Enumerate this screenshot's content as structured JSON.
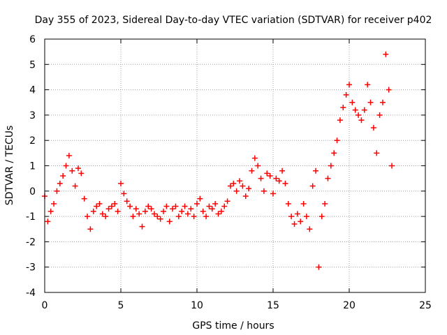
{
  "chart_data": {
    "type": "scatter",
    "title": "Day 355 of 2023, Sidereal Day-to-day VTEC variation (SDTVAR) for receiver p402",
    "xlabel": "GPS time / hours",
    "ylabel": "SDTVAR / TECUs",
    "xlim": [
      0,
      25
    ],
    "ylim": [
      -4,
      6
    ],
    "x_ticks": [
      0,
      5,
      10,
      15,
      20,
      25
    ],
    "y_ticks": [
      -4,
      -3,
      -2,
      -1,
      0,
      1,
      2,
      3,
      4,
      5,
      6
    ],
    "x_tick_labels": [
      "0",
      "5",
      "10",
      "15",
      "20",
      "25"
    ],
    "y_tick_labels": [
      "-4",
      "-3",
      "-2",
      "-1",
      "0",
      "1",
      "2",
      "3",
      "4",
      "5",
      "6"
    ],
    "grid": true,
    "marker": "+",
    "color": "#ff0000",
    "series": [
      {
        "name": "SDTVAR",
        "x": [
          0.0,
          0.2,
          0.4,
          0.6,
          0.8,
          1.0,
          1.2,
          1.4,
          1.6,
          1.8,
          2.0,
          2.2,
          2.4,
          2.6,
          2.8,
          3.0,
          3.2,
          3.4,
          3.6,
          3.8,
          4.0,
          4.2,
          4.4,
          4.6,
          4.8,
          5.0,
          5.2,
          5.4,
          5.6,
          5.8,
          6.0,
          6.2,
          6.4,
          6.6,
          6.8,
          7.0,
          7.2,
          7.4,
          7.6,
          7.8,
          8.0,
          8.2,
          8.4,
          8.6,
          8.8,
          9.0,
          9.2,
          9.4,
          9.6,
          9.8,
          10.0,
          10.2,
          10.4,
          10.6,
          10.8,
          11.0,
          11.2,
          11.4,
          11.6,
          11.8,
          12.0,
          12.2,
          12.4,
          12.6,
          12.8,
          13.0,
          13.2,
          13.4,
          13.6,
          13.8,
          14.0,
          14.2,
          14.4,
          14.6,
          14.8,
          15.0,
          15.2,
          15.4,
          15.6,
          15.8,
          16.0,
          16.2,
          16.4,
          16.6,
          16.8,
          17.0,
          17.2,
          17.4,
          17.6,
          17.8,
          18.0,
          18.2,
          18.4,
          18.6,
          18.8,
          19.0,
          19.2,
          19.4,
          19.6,
          19.8,
          20.0,
          20.2,
          20.4,
          20.6,
          20.8,
          21.0,
          21.2,
          21.4,
          21.6,
          21.8,
          22.0,
          22.2,
          22.4,
          22.6,
          22.8
        ],
        "y": [
          -0.2,
          -1.2,
          -0.8,
          -0.5,
          0.0,
          0.3,
          0.6,
          1.0,
          1.4,
          0.8,
          0.2,
          0.9,
          0.7,
          -0.3,
          -1.0,
          -1.5,
          -0.8,
          -0.6,
          -0.5,
          -0.9,
          -1.0,
          -0.7,
          -0.6,
          -0.5,
          -0.8,
          0.3,
          -0.1,
          -0.4,
          -0.6,
          -1.0,
          -0.7,
          -0.9,
          -1.4,
          -0.8,
          -0.6,
          -0.7,
          -0.9,
          -1.0,
          -1.1,
          -0.8,
          -0.6,
          -1.2,
          -0.7,
          -0.6,
          -1.0,
          -0.8,
          -0.6,
          -0.9,
          -0.7,
          -1.0,
          -0.5,
          -0.3,
          -0.8,
          -1.0,
          -0.6,
          -0.7,
          -0.5,
          -0.9,
          -0.8,
          -0.6,
          -0.4,
          0.2,
          0.3,
          0.0,
          0.4,
          0.2,
          -0.2,
          0.1,
          0.8,
          1.3,
          1.0,
          0.5,
          0.0,
          0.7,
          0.6,
          -0.1,
          0.5,
          0.4,
          0.8,
          0.3,
          -0.5,
          -1.0,
          -1.3,
          -0.9,
          -1.2,
          -0.5,
          -1.0,
          -1.5,
          0.2,
          0.8,
          -3.0,
          -1.0,
          -0.5,
          0.5,
          1.0,
          1.5,
          2.0,
          2.8,
          3.3,
          3.8,
          4.2,
          3.5,
          3.2,
          3.0,
          2.8,
          3.2,
          4.2,
          3.5,
          2.5,
          1.5,
          3.0,
          3.5,
          5.4,
          4.0,
          1.0
        ]
      }
    ]
  }
}
